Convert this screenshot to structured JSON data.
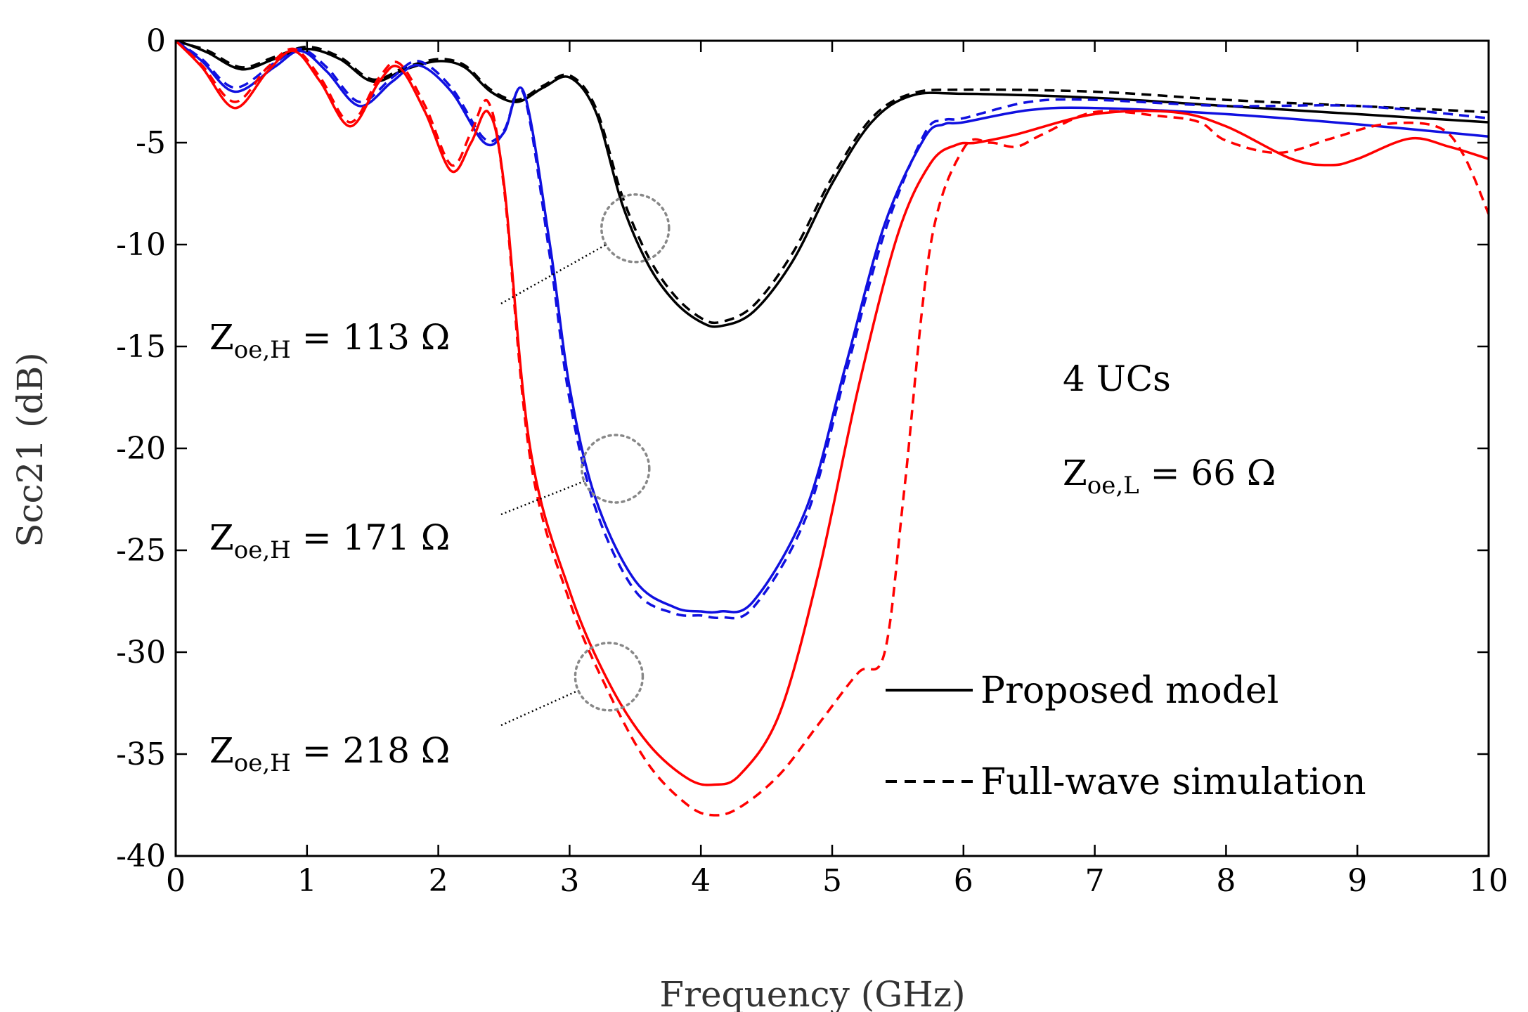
{
  "chart_data": {
    "type": "line",
    "xlabel": "Frequency (GHz)",
    "ylabel": "Scc21 (dB)",
    "xlim": [
      0,
      10
    ],
    "ylim": [
      -40,
      0
    ],
    "xticks": [
      0,
      1,
      2,
      3,
      4,
      5,
      6,
      7,
      8,
      9,
      10
    ],
    "yticks": [
      0,
      -5,
      -10,
      -15,
      -20,
      -25,
      -30,
      -35,
      -40
    ],
    "xtick_labels": [
      "0",
      "1",
      "2",
      "3",
      "4",
      "5",
      "6",
      "7",
      "8",
      "9",
      "10"
    ],
    "ytick_labels": [
      "0",
      "-5",
      "-10",
      "-15",
      "-20",
      "-25",
      "-30",
      "-35",
      "-40"
    ],
    "grid": false,
    "legend_position": "bottom-right",
    "legend": [
      {
        "label": "Proposed model",
        "style": "solid",
        "color": "#000000"
      },
      {
        "label": "Full-wave simulation",
        "style": "dashed",
        "color": "#000000"
      }
    ],
    "annotations": [
      {
        "main": "Z",
        "sub": "oe,H",
        "rest": " = 113 Ω",
        "points_to_x": 3.5,
        "points_to_y": -9.2
      },
      {
        "main": "Z",
        "sub": "oe,H",
        "rest": " = 171 Ω",
        "points_to_x": 3.35,
        "points_to_y": -21
      },
      {
        "main": "Z",
        "sub": "oe,H",
        "rest": " = 218 Ω",
        "points_to_x": 3.3,
        "points_to_y": -31.2
      }
    ],
    "text_notes": {
      "ucs": "4 UCs",
      "zl_main": "Z",
      "zl_sub": "oe,L",
      "zl_rest": " = 66 Ω"
    },
    "series": [
      {
        "name": "Zoe,H = 113 Ω — Proposed model",
        "color": "#000000",
        "style": "solid",
        "x": [
          0,
          0.1,
          0.25,
          0.5,
          0.75,
          1.0,
          1.25,
          1.5,
          1.75,
          2.0,
          2.2,
          2.4,
          2.6,
          2.8,
          3.0,
          3.2,
          3.4,
          3.6,
          3.8,
          4.0,
          4.15,
          4.4,
          4.7,
          5.0,
          5.3,
          5.6,
          6.0,
          7.0,
          8.0,
          9.0,
          10.0
        ],
        "y": [
          0,
          -0.2,
          -0.6,
          -1.4,
          -0.9,
          -0.4,
          -0.9,
          -2.0,
          -1.4,
          -1.0,
          -1.3,
          -2.5,
          -3.0,
          -2.3,
          -1.8,
          -3.5,
          -8.0,
          -11.0,
          -12.8,
          -13.8,
          -14.0,
          -13.3,
          -10.8,
          -7.0,
          -4.0,
          -2.7,
          -2.6,
          -2.8,
          -3.2,
          -3.6,
          -4.0
        ]
      },
      {
        "name": "Zoe,H = 113 Ω — Full-wave simulation",
        "color": "#000000",
        "style": "dashed",
        "x": [
          0,
          0.1,
          0.25,
          0.5,
          0.75,
          1.0,
          1.25,
          1.5,
          1.75,
          2.0,
          2.2,
          2.4,
          2.6,
          2.8,
          3.0,
          3.2,
          3.4,
          3.6,
          3.8,
          4.0,
          4.15,
          4.4,
          4.7,
          5.0,
          5.3,
          5.6,
          6.0,
          7.0,
          8.0,
          9.0,
          10.0
        ],
        "y": [
          0,
          -0.2,
          -0.5,
          -1.3,
          -0.8,
          -0.3,
          -0.8,
          -1.9,
          -1.3,
          -0.9,
          -1.2,
          -2.4,
          -2.9,
          -2.2,
          -1.7,
          -3.3,
          -7.6,
          -10.6,
          -12.5,
          -13.6,
          -13.8,
          -13.0,
          -10.4,
          -6.7,
          -3.8,
          -2.6,
          -2.4,
          -2.5,
          -2.9,
          -3.2,
          -3.5
        ]
      },
      {
        "name": "Zoe,H = 171 Ω — Proposed model",
        "color": "#1010e0",
        "style": "solid",
        "x": [
          0,
          0.2,
          0.45,
          0.75,
          0.95,
          1.15,
          1.4,
          1.65,
          1.85,
          2.1,
          2.35,
          2.5,
          2.65,
          2.85,
          3.0,
          3.2,
          3.5,
          3.8,
          4.0,
          4.15,
          4.4,
          4.8,
          5.1,
          5.4,
          5.7,
          5.85,
          6.0,
          6.5,
          7.0,
          8.0,
          9.0,
          10.0
        ],
        "y": [
          0,
          -1.0,
          -2.5,
          -1.3,
          -0.5,
          -1.5,
          -3.2,
          -2.0,
          -1.2,
          -2.5,
          -5.0,
          -4.5,
          -2.5,
          -10.0,
          -17.0,
          -22.5,
          -26.5,
          -27.8,
          -28.0,
          -28.0,
          -27.5,
          -23.0,
          -16.0,
          -9.0,
          -4.8,
          -4.1,
          -4.0,
          -3.4,
          -3.3,
          -3.6,
          -4.1,
          -4.7
        ]
      },
      {
        "name": "Zoe,H = 171 Ω — Full-wave simulation",
        "color": "#1010e0",
        "style": "dashed",
        "x": [
          0,
          0.2,
          0.45,
          0.75,
          0.95,
          1.15,
          1.4,
          1.65,
          1.85,
          2.1,
          2.35,
          2.5,
          2.65,
          2.85,
          3.0,
          3.2,
          3.5,
          3.8,
          4.0,
          4.15,
          4.4,
          4.8,
          5.1,
          5.4,
          5.7,
          5.85,
          6.0,
          6.5,
          7.0,
          8.0,
          9.0,
          10.0
        ],
        "y": [
          0,
          -0.9,
          -2.3,
          -1.1,
          -0.4,
          -1.3,
          -3.0,
          -1.8,
          -1.0,
          -2.3,
          -4.8,
          -4.4,
          -2.6,
          -10.6,
          -17.6,
          -23.0,
          -27.0,
          -28.1,
          -28.2,
          -28.3,
          -27.8,
          -23.4,
          -16.4,
          -9.4,
          -4.6,
          -3.9,
          -3.8,
          -3.0,
          -2.9,
          -3.2,
          -3.2,
          -3.8
        ]
      },
      {
        "name": "Zoe,H = 218 Ω — Proposed model",
        "color": "#ff0000",
        "style": "solid",
        "x": [
          0,
          0.2,
          0.45,
          0.7,
          0.9,
          1.1,
          1.33,
          1.55,
          1.7,
          1.9,
          2.1,
          2.25,
          2.38,
          2.5,
          2.7,
          3.0,
          3.3,
          3.6,
          3.9,
          4.1,
          4.3,
          4.6,
          4.9,
          5.2,
          5.5,
          5.75,
          5.95,
          6.1,
          6.4,
          7.0,
          7.6,
          8.0,
          8.5,
          8.8,
          9.0,
          9.4,
          9.7,
          10.0
        ],
        "y": [
          0,
          -1.3,
          -3.3,
          -1.5,
          -0.5,
          -2.0,
          -4.2,
          -2.0,
          -1.3,
          -3.5,
          -6.4,
          -5.0,
          -3.5,
          -7.0,
          -20.0,
          -27.0,
          -31.5,
          -34.5,
          -36.2,
          -36.5,
          -36.0,
          -33.0,
          -26.0,
          -17.0,
          -9.5,
          -6.0,
          -5.1,
          -5.0,
          -4.6,
          -3.6,
          -3.5,
          -4.2,
          -5.8,
          -6.1,
          -5.8,
          -4.8,
          -5.2,
          -5.8
        ]
      },
      {
        "name": "Zoe,H = 218 Ω — Full-wave simulation",
        "color": "#ff0000",
        "style": "dashed",
        "x": [
          0,
          0.2,
          0.45,
          0.7,
          0.9,
          1.1,
          1.33,
          1.55,
          1.7,
          1.9,
          2.1,
          2.25,
          2.38,
          2.5,
          2.7,
          3.0,
          3.3,
          3.6,
          3.9,
          4.1,
          4.3,
          4.6,
          4.9,
          5.2,
          5.4,
          5.55,
          5.75,
          6.0,
          6.2,
          6.4,
          6.6,
          7.0,
          7.5,
          7.8,
          8.0,
          8.4,
          8.8,
          9.2,
          9.6,
          9.8,
          10.0
        ],
        "y": [
          0,
          -1.2,
          -3.0,
          -1.3,
          -0.4,
          -1.8,
          -4.0,
          -1.8,
          -1.1,
          -3.2,
          -6.1,
          -4.5,
          -3.0,
          -7.2,
          -20.5,
          -27.5,
          -32.0,
          -35.5,
          -37.5,
          -38.0,
          -37.6,
          -36.0,
          -33.5,
          -31.0,
          -30.0,
          -22.0,
          -10.0,
          -5.3,
          -5.0,
          -5.2,
          -4.6,
          -3.5,
          -3.7,
          -4.0,
          -4.9,
          -5.5,
          -4.8,
          -4.1,
          -4.2,
          -5.5,
          -8.5
        ]
      }
    ]
  }
}
